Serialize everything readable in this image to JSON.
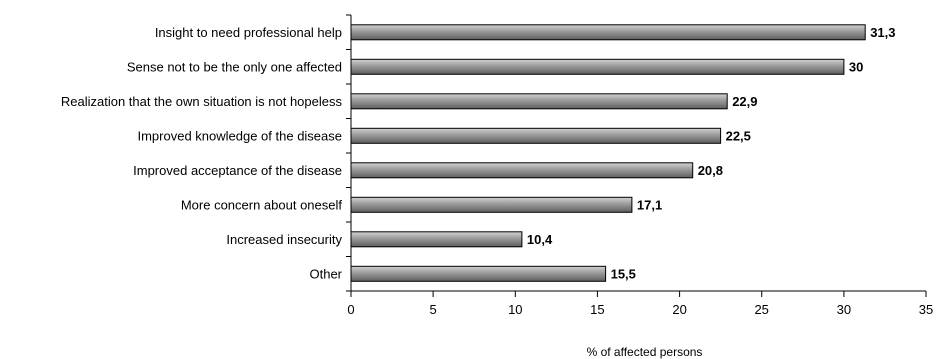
{
  "chart_data": {
    "type": "bar",
    "orientation": "horizontal",
    "categories": [
      "Insight to need professional help",
      "Sense not to be the only one affected",
      "Realization that the own situation is not hopeless",
      "Improved knowledge of the disease",
      "Improved acceptance of the disease",
      "More concern about oneself",
      "Increased insecurity",
      "Other"
    ],
    "values": [
      31.3,
      30,
      22.9,
      22.5,
      20.8,
      17.1,
      10.4,
      15.5
    ],
    "value_labels": [
      "31,3",
      "30",
      "22,9",
      "22,5",
      "20,8",
      "17,1",
      "10,4",
      "15,5"
    ],
    "title": "",
    "xlabel": "% of affected persons",
    "ylabel": "",
    "xlim": [
      0,
      35
    ],
    "x_ticks": [
      0,
      5,
      10,
      15,
      20,
      25,
      30,
      35
    ],
    "grid": false,
    "legend": "none",
    "bar_color": "#8c8c8c"
  }
}
